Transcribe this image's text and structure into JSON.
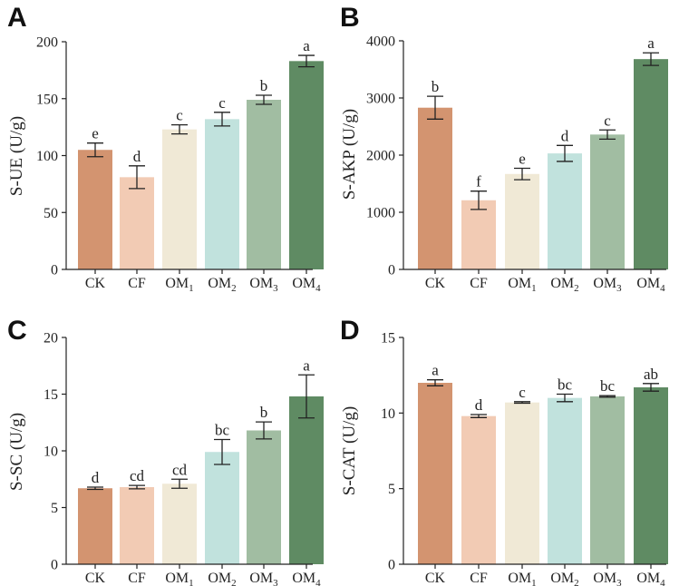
{
  "colors": [
    "#d39470",
    "#f2cbb4",
    "#f0e9d6",
    "#c1e2dd",
    "#a1bda2",
    "#5f8b63"
  ],
  "chart_data": [
    {
      "type": "bar",
      "panel": "A",
      "ylabel": "S-UE (U/g)",
      "ylim": [
        0,
        200
      ],
      "yticks": [
        0,
        50,
        100,
        150,
        200
      ],
      "categories": [
        {
          "base": "CK",
          "sub": ""
        },
        {
          "base": "CF",
          "sub": ""
        },
        {
          "base": "OM",
          "sub": "1"
        },
        {
          "base": "OM",
          "sub": "2"
        },
        {
          "base": "OM",
          "sub": "3"
        },
        {
          "base": "OM",
          "sub": "4"
        }
      ],
      "values": [
        105,
        81,
        123,
        132,
        149,
        183
      ],
      "errors": [
        6,
        10,
        4,
        6,
        4,
        5
      ],
      "letters": [
        "e",
        "d",
        "c",
        "c",
        "b",
        "a"
      ]
    },
    {
      "type": "bar",
      "panel": "B",
      "ylabel": "S-AKP (U/g)",
      "ylim": [
        0,
        4000
      ],
      "yticks": [
        0,
        1000,
        2000,
        3000,
        4000
      ],
      "categories": [
        {
          "base": "CK",
          "sub": ""
        },
        {
          "base": "CF",
          "sub": ""
        },
        {
          "base": "OM",
          "sub": "1"
        },
        {
          "base": "OM",
          "sub": "2"
        },
        {
          "base": "OM",
          "sub": "3"
        },
        {
          "base": "OM",
          "sub": "4"
        }
      ],
      "values": [
        2830,
        1210,
        1670,
        2030,
        2360,
        3680
      ],
      "errors": [
        200,
        160,
        100,
        140,
        80,
        110
      ],
      "letters": [
        "b",
        "f",
        "e",
        "d",
        "c",
        "a"
      ]
    },
    {
      "type": "bar",
      "panel": "C",
      "ylabel": "S-SC (U/g)",
      "ylim": [
        0,
        20
      ],
      "yticks": [
        0,
        5,
        10,
        15,
        20
      ],
      "categories": [
        {
          "base": "CK",
          "sub": ""
        },
        {
          "base": "CF",
          "sub": ""
        },
        {
          "base": "OM",
          "sub": "1"
        },
        {
          "base": "OM",
          "sub": "2"
        },
        {
          "base": "OM",
          "sub": "3"
        },
        {
          "base": "OM",
          "sub": "4"
        }
      ],
      "values": [
        6.7,
        6.8,
        7.1,
        9.9,
        11.8,
        14.8
      ],
      "errors": [
        0.1,
        0.15,
        0.4,
        1.1,
        0.75,
        1.9
      ],
      "letters": [
        "d",
        "cd",
        "cd",
        "bc",
        "b",
        "a"
      ]
    },
    {
      "type": "bar",
      "panel": "D",
      "ylabel": "S-CAT (U/g)",
      "ylim": [
        0,
        15
      ],
      "yticks": [
        0,
        5,
        10,
        15
      ],
      "categories": [
        {
          "base": "CK",
          "sub": ""
        },
        {
          "base": "CF",
          "sub": ""
        },
        {
          "base": "OM",
          "sub": "1"
        },
        {
          "base": "OM",
          "sub": "2"
        },
        {
          "base": "OM",
          "sub": "3"
        },
        {
          "base": "OM",
          "sub": "4"
        }
      ],
      "values": [
        12.0,
        9.8,
        10.7,
        11.0,
        11.1,
        11.7
      ],
      "errors": [
        0.2,
        0.1,
        0.05,
        0.25,
        0.05,
        0.25
      ],
      "letters": [
        "a",
        "d",
        "c",
        "bc",
        "bc",
        "ab"
      ]
    }
  ]
}
